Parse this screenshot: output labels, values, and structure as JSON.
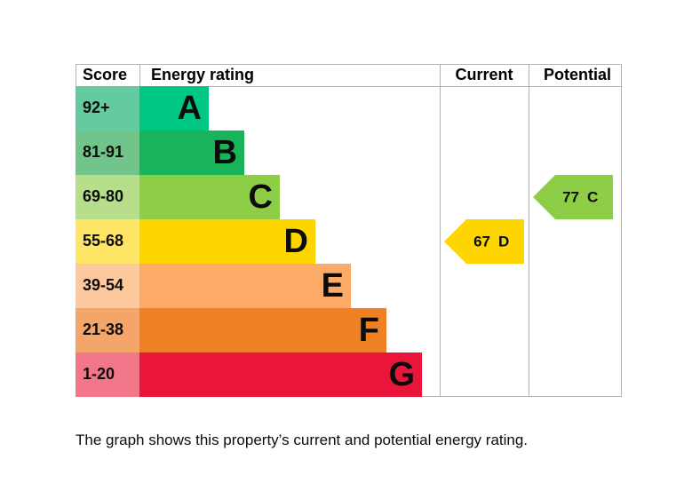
{
  "chart_data": {
    "type": "epc",
    "headers": {
      "score": "Score",
      "rating": "Energy rating",
      "current": "Current",
      "potential": "Potential"
    },
    "bands": [
      {
        "score": "92+",
        "letter": "A",
        "color": "#00c781",
        "score_color": "#64cba0"
      },
      {
        "score": "81-91",
        "letter": "B",
        "color": "#19b459",
        "score_color": "#72c58a"
      },
      {
        "score": "69-80",
        "letter": "C",
        "color": "#8dce46",
        "score_color": "#b7df8b"
      },
      {
        "score": "55-68",
        "letter": "D",
        "color": "#ffd500",
        "score_color": "#ffe566"
      },
      {
        "score": "39-54",
        "letter": "E",
        "color": "#fcaa65",
        "score_color": "#fdc89c"
      },
      {
        "score": "21-38",
        "letter": "F",
        "color": "#ef8023",
        "score_color": "#f4a56a"
      },
      {
        "score": "1-20",
        "letter": "G",
        "color": "#e9153b",
        "score_color": "#f17789"
      }
    ],
    "current": {
      "value": 67,
      "band": "D"
    },
    "potential": {
      "value": 77,
      "band": "C"
    },
    "caption": "The graph shows this property’s current and potential energy rating."
  }
}
